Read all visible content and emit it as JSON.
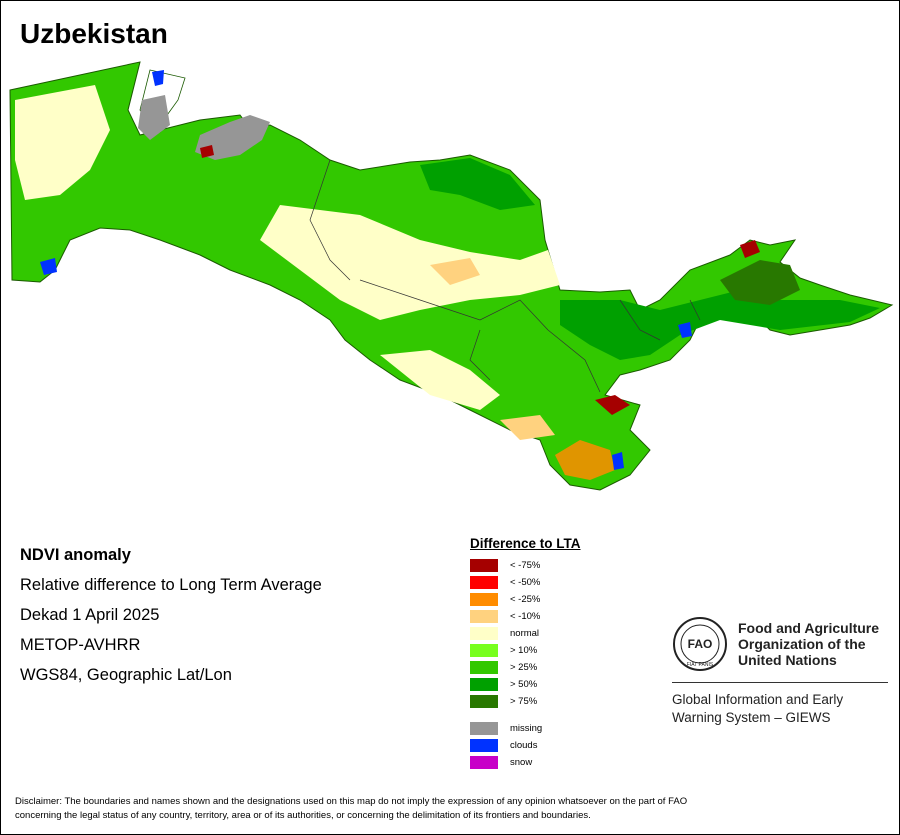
{
  "title": "Uzbekistan",
  "info": {
    "heading": "NDVI anomaly",
    "line1": "Relative difference to Long Term Average",
    "line2": "Dekad 1 April 2025",
    "line3": "METOP-AVHRR",
    "line4": "WGS84, Geographic Lat/Lon"
  },
  "legend": {
    "title": "Difference to LTA",
    "items": [
      {
        "label": "< -75%",
        "color": "#a50000"
      },
      {
        "label": "< -50%",
        "color": "#ff0000"
      },
      {
        "label": "< -25%",
        "color": "#ff8c00"
      },
      {
        "label": "< -10%",
        "color": "#ffd27f"
      },
      {
        "label": "normal",
        "color": "#ffffc8"
      },
      {
        "label": "> 10%",
        "color": "#78ff1e"
      },
      {
        "label": "> 25%",
        "color": "#32c800"
      },
      {
        "label": "> 50%",
        "color": "#00a000"
      },
      {
        "label": "> 75%",
        "color": "#287800"
      }
    ],
    "extra": [
      {
        "label": "missing",
        "color": "#969696"
      },
      {
        "label": "clouds",
        "color": "#0032ff"
      },
      {
        "label": "snow",
        "color": "#c800c8"
      }
    ]
  },
  "fao": {
    "name1": "Food and Agriculture",
    "name2": "Organization of the",
    "name3": "United Nations",
    "logo_text": "FAO",
    "logo_motto": "FIAT PANIS",
    "giews1": "Global Information and Early",
    "giews2": "Warning System – GIEWS"
  },
  "disclaimer1": "Disclaimer: The boundaries and names shown and the designations used on this map do not imply the expression of any opinion whatsoever on the part of FAO",
  "disclaimer2": "concerning the legal status of any country, territory, area or of its authorities, or concerning the delimitation of its frontiers and boundaries."
}
